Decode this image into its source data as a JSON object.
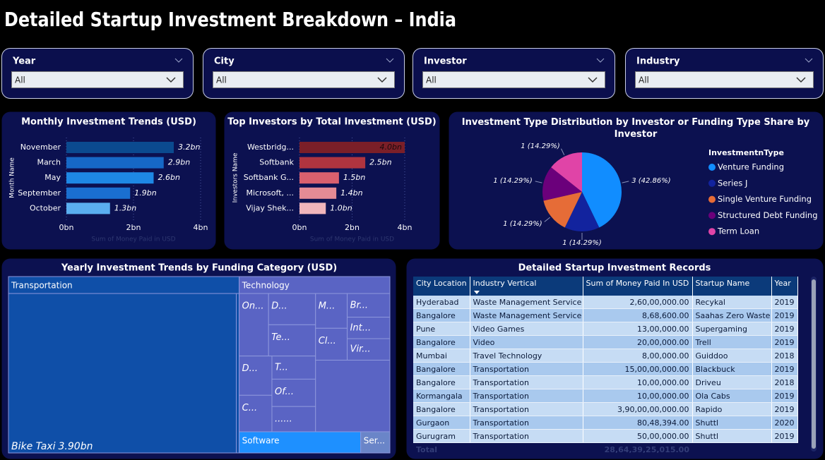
{
  "header": {
    "title": "Detailed Startup Investment Breakdown – India"
  },
  "filters": [
    {
      "label": "Year",
      "value": "All"
    },
    {
      "label": "City",
      "value": "All"
    },
    {
      "label": "Investor",
      "value": "All"
    },
    {
      "label": "Industry",
      "value": "All"
    }
  ],
  "chart_data": [
    {
      "type": "bar",
      "title": "Monthly Investment Trends (USD)",
      "y_label": "Month Name",
      "x_label": "Sum of Money Paid in USD",
      "categories": [
        "November",
        "March",
        "May",
        "September",
        "October"
      ],
      "values": [
        3.2,
        2.9,
        2.6,
        1.9,
        1.3
      ],
      "value_labels": [
        "3.2bn",
        "2.9bn",
        "2.6bn",
        "1.9bn",
        "1.3bn"
      ],
      "colors": [
        "#0b4a8f",
        "#1668c6",
        "#1e88e5",
        "#1a6fd0",
        "#5aaef0"
      ],
      "xlim": [
        0,
        4
      ],
      "xticks": [
        {
          "value": 0,
          "label": "0bn"
        },
        {
          "value": 2,
          "label": "2bn"
        },
        {
          "value": 4,
          "label": "4bn"
        }
      ],
      "grid": true
    },
    {
      "type": "bar",
      "title": "Top Investors by Total Investment (USD)",
      "y_label": "Investors Name",
      "x_label": "Sum of Money Paid in USD",
      "categories": [
        "Westbridg...",
        "Softbank",
        "Softbank G...",
        "Microsoft, ...",
        "Vijay Shek..."
      ],
      "values": [
        4.0,
        2.5,
        1.5,
        1.4,
        1.0
      ],
      "value_labels": [
        "4.0bn",
        "2.5bn",
        "1.5bn",
        "1.4bn",
        "1.0bn"
      ],
      "colors": [
        "#7b1f28",
        "#b0343f",
        "#d9606e",
        "#e58b95",
        "#f0b5bb"
      ],
      "xlim": [
        0,
        4
      ],
      "xticks": [
        {
          "value": 0,
          "label": "0bn"
        },
        {
          "value": 2,
          "label": "2bn"
        },
        {
          "value": 4,
          "label": "4bn"
        }
      ],
      "grid": true
    },
    {
      "type": "pie",
      "title": "Investment Type Distribution by Investor or Funding Type Share by Investor",
      "legend_title": "InvestmentnType",
      "legend": "right",
      "categories": [
        "Venture Funding",
        "Series J",
        "Single Venture Funding",
        "Structured Debt Funding",
        "Term Loan"
      ],
      "values": [
        3,
        1,
        1,
        1,
        1
      ],
      "value_labels": [
        "3 (42.86%)",
        "1 (14.29%)",
        "1 (14.29%)",
        "1 (14.29%)",
        "1 (14.29%)"
      ],
      "colors": [
        "#118dff",
        "#12239e",
        "#e66c37",
        "#6b007b",
        "#e044a7"
      ]
    },
    {
      "type": "treemap",
      "title": "Yearly Investment Trends by Funding Category (USD)",
      "groups": [
        {
          "name": "Transportation",
          "value": 3.95,
          "color": "#0f4fa8",
          "children": [
            {
              "name": "Bike Taxi",
              "value": 3.9,
              "value_label": "3.90bn"
            }
          ]
        },
        {
          "name": "Technology",
          "value": 2.27,
          "color": "#5a64c4",
          "children": [
            {
              "name": "On...",
              "value": 0.2
            },
            {
              "name": "D...",
              "value": 0.16
            },
            {
              "name": "Te...",
              "value": 0.16
            },
            {
              "name": "D...",
              "value": 0.14
            },
            {
              "name": "C...",
              "value": 0.13
            },
            {
              "name": "T...",
              "value": 0.11
            },
            {
              "name": "Of...",
              "value": 0.13
            },
            {
              "name": "......",
              "value": 0.12
            },
            {
              "name": "M...",
              "value": 0.12
            },
            {
              "name": "Cl...",
              "value": 0.11
            },
            {
              "name": "Br...",
              "value": 0.11
            },
            {
              "name": "Int...",
              "value": 0.1
            },
            {
              "name": "Vir...",
              "value": 0.1
            }
          ]
        },
        {
          "name": "Software",
          "value": 0.25,
          "color": "#1e90ff"
        },
        {
          "name": "Ser...",
          "value": 0.06,
          "color": "#6a85c8"
        }
      ]
    }
  ],
  "table": {
    "title": "Detailed Startup Investment Records",
    "columns": [
      "City Location",
      "Industry Vertical",
      "Sum of Money Paid In USD",
      "Startup Name",
      "Year"
    ],
    "rows": [
      [
        "Hyderabad",
        "Waste Management Service",
        "2,60,00,000.00",
        "Recykal",
        "2019"
      ],
      [
        "Bangalore",
        "Waste Management Service",
        "8,68,600.00",
        "Saahas Zero Waste",
        "2019"
      ],
      [
        "Pune",
        "Video Games",
        "13,00,000.00",
        "Supergaming",
        "2019"
      ],
      [
        "Bangalore",
        "Video",
        "20,00,000.00",
        "Trell",
        "2019"
      ],
      [
        "Mumbai",
        "Travel Technology",
        "8,00,000.00",
        "Guiddoo",
        "2018"
      ],
      [
        "Bangalore",
        "Transportation",
        "15,00,00,000.00",
        "Blackbuck",
        "2019"
      ],
      [
        "Bangalore",
        "Transportation",
        "10,00,000.00",
        "Driveu",
        "2018"
      ],
      [
        "Kormangala",
        "Transportation",
        "10,00,000.00",
        "Ola Cabs",
        "2019"
      ],
      [
        "Bangalore",
        "Transportation",
        "3,90,00,00,000.00",
        "Rapido",
        "2019"
      ],
      [
        "Gurgaon",
        "Transportation",
        "80,48,394.00",
        "Shuttl",
        "2020"
      ],
      [
        "Gurugram",
        "Transportation",
        "50,00,000.00",
        "Shuttl",
        "2019"
      ]
    ],
    "total": [
      "Total",
      "28,64,39,25,015.00"
    ]
  }
}
